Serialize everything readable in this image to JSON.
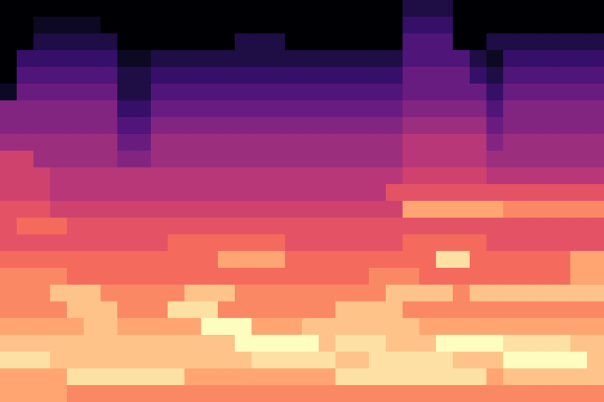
{
  "chart_data": {
    "type": "heatmap",
    "tick_labels": false,
    "cells": [
      [
        0,
        0,
        0,
        0,
        0,
        0,
        0,
        0,
        0,
        0,
        0,
        0,
        0,
        0,
        0,
        0,
        0,
        0,
        0,
        0,
        0,
        0,
        0,
        0,
        1,
        1,
        1,
        0,
        0,
        0,
        0,
        0,
        0,
        0,
        0,
        0
      ],
      [
        0,
        0,
        0.5,
        0.5,
        0.5,
        0.5,
        0,
        0,
        0,
        0,
        0,
        0,
        0,
        0,
        0,
        0,
        0,
        0,
        0,
        0,
        0,
        0,
        0,
        0,
        1.5,
        1.5,
        1.5,
        0,
        0,
        0,
        0,
        0,
        0,
        0,
        0,
        0
      ],
      [
        0,
        0,
        1,
        1,
        1,
        1,
        1,
        0,
        0,
        0,
        0,
        0,
        0,
        0,
        1,
        1,
        1,
        0,
        0,
        0,
        0,
        0,
        0,
        0,
        2,
        2,
        2,
        0,
        0,
        1,
        1,
        1,
        1,
        1,
        1,
        1
      ],
      [
        0,
        1.5,
        1.5,
        1.5,
        1.5,
        1.5,
        1.5,
        0.5,
        0.5,
        1,
        1,
        1,
        1,
        1,
        1,
        1,
        1,
        1,
        1,
        1,
        1,
        1,
        1,
        1,
        2,
        2,
        2,
        2,
        1,
        0.5,
        1.5,
        1.5,
        1.5,
        1.5,
        1.5,
        1.5
      ],
      [
        0,
        2,
        2,
        2,
        2,
        2,
        2,
        1,
        1,
        1.5,
        1.5,
        1.5,
        1.5,
        1.5,
        1.5,
        1.5,
        1.5,
        1.5,
        1.5,
        1.5,
        1.5,
        1.5,
        1.5,
        1.5,
        2.5,
        2.5,
        2.5,
        2.5,
        1.5,
        1,
        2,
        2,
        2,
        2,
        2,
        2
      ],
      [
        0.5,
        2.5,
        2.5,
        2.5,
        2.5,
        2.5,
        2.5,
        1,
        1,
        2,
        2,
        2,
        2,
        2,
        2,
        2,
        2,
        2,
        2,
        2,
        2,
        2,
        2,
        2,
        2.5,
        2.5,
        2.5,
        2.5,
        2.5,
        1.5,
        2.5,
        2.5,
        2.5,
        2.5,
        2.5,
        2.5
      ],
      [
        3,
        3,
        3,
        3,
        3,
        3,
        3,
        1.5,
        1.5,
        2.5,
        2.5,
        2.5,
        2.5,
        2.5,
        2.5,
        2.5,
        2.5,
        2.5,
        2.5,
        2.5,
        2.5,
        2.5,
        2.5,
        2.5,
        3,
        3,
        3,
        3,
        3,
        2,
        3,
        3,
        3,
        3,
        3,
        3
      ],
      [
        3,
        3,
        3,
        3,
        3,
        3,
        3,
        2,
        2,
        3,
        3,
        3,
        3,
        3,
        3,
        3,
        3,
        3,
        3,
        3,
        3,
        3,
        3,
        3,
        3.5,
        3.5,
        3.5,
        3.5,
        3.5,
        2.5,
        3,
        3,
        3,
        3,
        3,
        3
      ],
      [
        3.5,
        3.5,
        3.5,
        3.5,
        3.5,
        3.5,
        3.5,
        2.5,
        2.5,
        3.5,
        3.5,
        3.5,
        3.5,
        3.5,
        3.5,
        3.5,
        3.5,
        3.5,
        3.5,
        3.5,
        3.5,
        3.5,
        3.5,
        3.5,
        4,
        4,
        4,
        4,
        4,
        3,
        3.5,
        3.5,
        3.5,
        3.5,
        3.5,
        3.5
      ],
      [
        4.5,
        4.5,
        3.5,
        3.5,
        3.5,
        3.5,
        3.5,
        3,
        3,
        3.5,
        3.5,
        3.5,
        3.5,
        3.5,
        3.5,
        3.5,
        3.5,
        3.5,
        3.5,
        3.5,
        3.5,
        3.5,
        3.5,
        3.5,
        4,
        4,
        4,
        4,
        4,
        3.5,
        3.5,
        3.5,
        3.5,
        3.5,
        3.5,
        3.5
      ],
      [
        4.5,
        4.5,
        4.5,
        4,
        4,
        4,
        4,
        4,
        4,
        4,
        4,
        4,
        4,
        4,
        4,
        4,
        4,
        4,
        4,
        4,
        4,
        4,
        4,
        4,
        4.5,
        4.5,
        4.5,
        4.5,
        4.5,
        4,
        4,
        4,
        4,
        4,
        4,
        4
      ],
      [
        4.5,
        4.5,
        4.5,
        4,
        4,
        4,
        4,
        4,
        4,
        4,
        4,
        4,
        4,
        4,
        4,
        4,
        4,
        4,
        4,
        4,
        4,
        4,
        4,
        5,
        5,
        5,
        5,
        5,
        5,
        5,
        5,
        5,
        5,
        5,
        5,
        5
      ],
      [
        5,
        5,
        5,
        4.5,
        4.5,
        4.5,
        4.5,
        4.5,
        4.5,
        4.5,
        4.5,
        4.5,
        4.5,
        4.5,
        4.5,
        4.5,
        4.5,
        4.5,
        4.5,
        4.5,
        4.5,
        4.5,
        4.5,
        4.5,
        6.5,
        6.5,
        6.5,
        6.5,
        6.5,
        6.5,
        6,
        6,
        6,
        6,
        6,
        6
      ],
      [
        5,
        5.5,
        5.5,
        5.5,
        5,
        5,
        5,
        5,
        5,
        5,
        5,
        5,
        5,
        5,
        5,
        5,
        5,
        5,
        5,
        5,
        5,
        5,
        5,
        5,
        5,
        5,
        5,
        5,
        5,
        5,
        5,
        5,
        5,
        5,
        5,
        5
      ],
      [
        5,
        5,
        5,
        5,
        5,
        5,
        5,
        5,
        5,
        5,
        5.5,
        5.5,
        5.5,
        5.5,
        5.5,
        5.5,
        5.5,
        5,
        5,
        5,
        5,
        5,
        5,
        5,
        5.5,
        5.5,
        5.5,
        5.5,
        5.5,
        5,
        5,
        5,
        5,
        5,
        5,
        5
      ],
      [
        5.5,
        5.5,
        5.5,
        5.5,
        5.5,
        5.5,
        5.5,
        5.5,
        5.5,
        5.5,
        5.5,
        5.5,
        5.5,
        6.5,
        6.5,
        6.5,
        6.5,
        5.5,
        5.5,
        5.5,
        5.5,
        5.5,
        5.5,
        5.5,
        5.5,
        5.5,
        7.5,
        7.5,
        5.5,
        5.5,
        5.5,
        5.5,
        5.5,
        5.5,
        6.5,
        6.5
      ],
      [
        6,
        6,
        6,
        6,
        5.5,
        5.5,
        5.5,
        5.5,
        5.5,
        5.5,
        5.5,
        5.5,
        5.5,
        5.5,
        5.5,
        5.5,
        5.5,
        5.5,
        5.5,
        5.5,
        5.5,
        5.5,
        6,
        6,
        6,
        5.5,
        5.5,
        5.5,
        5.5,
        5.5,
        5.5,
        5.5,
        5.5,
        5.5,
        6.5,
        6.5
      ],
      [
        6,
        6,
        6,
        7,
        7,
        7,
        6,
        6,
        6,
        6,
        6,
        7,
        7,
        7,
        6,
        6,
        6,
        6,
        6,
        6,
        6,
        6,
        6,
        7,
        7,
        7,
        7,
        6,
        7,
        7,
        7,
        7,
        7,
        7,
        7,
        7
      ],
      [
        6,
        6,
        6,
        6,
        7,
        7,
        7,
        6,
        6,
        6,
        7.5,
        7.5,
        7.5,
        6,
        6,
        6,
        6,
        6,
        6,
        6,
        7,
        7,
        7,
        7,
        6,
        6,
        6,
        6,
        6,
        6,
        6,
        6,
        6,
        6,
        6,
        6
      ],
      [
        6.5,
        6.5,
        6.5,
        6.5,
        6.5,
        7,
        7,
        6.5,
        6.5,
        6.5,
        6.5,
        6.5,
        8,
        8,
        8,
        6.5,
        6.5,
        6.5,
        7,
        7,
        7,
        7,
        7,
        7,
        7,
        6.5,
        6.5,
        6.5,
        6.5,
        6.5,
        6.5,
        6.5,
        6.5,
        6.5,
        6.5,
        6.5
      ],
      [
        7,
        7,
        7,
        7,
        7,
        7,
        7,
        7,
        7,
        7,
        7,
        7,
        7,
        7,
        8,
        8,
        8,
        8,
        8,
        7,
        7.5,
        7.5,
        7.5,
        7,
        7,
        7,
        8,
        8,
        8,
        8,
        7.5,
        7.5,
        7.5,
        7.5,
        7,
        7
      ],
      [
        7.5,
        7.5,
        7.5,
        7,
        7,
        7,
        7,
        7,
        7,
        7,
        7,
        7,
        7,
        7,
        7,
        7.5,
        7.5,
        7.5,
        7.5,
        7.5,
        7,
        7,
        7.5,
        7.5,
        7.5,
        7.5,
        7.5,
        7,
        7,
        7,
        8,
        8,
        8,
        8,
        8,
        7
      ],
      [
        6.5,
        6.5,
        6.5,
        6.5,
        7.5,
        7.5,
        7.5,
        7.5,
        7.5,
        7.5,
        7.5,
        6.5,
        6.5,
        6.5,
        6.5,
        6.5,
        6.5,
        6.5,
        6.5,
        6.5,
        7.5,
        7.5,
        7.5,
        7.5,
        7.5,
        7.5,
        7.5,
        7.5,
        7.5,
        6.5,
        7,
        7,
        7,
        7,
        7,
        7
      ],
      [
        6.5,
        6.5,
        6.5,
        6.5,
        6,
        6,
        6,
        6,
        6,
        6,
        6,
        6,
        6,
        6,
        6,
        6,
        6,
        6,
        6,
        6,
        6,
        6,
        6,
        6,
        6,
        6,
        6,
        6,
        6,
        6,
        6,
        6,
        6,
        6,
        6,
        6
      ]
    ]
  }
}
